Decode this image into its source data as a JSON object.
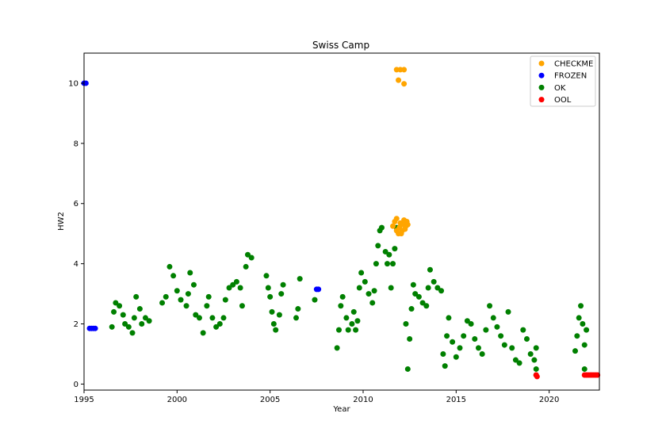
{
  "chart_data": {
    "type": "scatter",
    "title": "Swiss Camp",
    "xlabel": "Year",
    "ylabel": "HW2",
    "xlim": [
      1995.0,
      2022.7
    ],
    "ylim": [
      -0.2,
      11.0
    ],
    "x_ticks": [
      1995,
      2000,
      2005,
      2010,
      2015,
      2020
    ],
    "y_ticks": [
      0,
      2,
      4,
      6,
      8,
      10
    ],
    "grid": false,
    "legend_position": "top-right",
    "series": [
      {
        "name": "CHECKME",
        "color": "#ffa500",
        "points": [
          [
            2011.8,
            10.45
          ],
          [
            2012.0,
            10.45
          ],
          [
            2012.2,
            10.45
          ],
          [
            2011.9,
            10.1
          ],
          [
            2012.2,
            9.98
          ],
          [
            2011.6,
            5.25
          ],
          [
            2011.7,
            5.4
          ],
          [
            2011.8,
            5.5
          ],
          [
            2011.8,
            5.1
          ],
          [
            2011.9,
            5.0
          ],
          [
            2011.95,
            5.2
          ],
          [
            2012.0,
            5.35
          ],
          [
            2012.05,
            5.0
          ],
          [
            2012.1,
            5.1
          ],
          [
            2012.15,
            5.3
          ],
          [
            2012.2,
            5.45
          ],
          [
            2012.25,
            5.15
          ],
          [
            2012.3,
            5.25
          ],
          [
            2012.35,
            5.4
          ],
          [
            2012.4,
            5.3
          ]
        ]
      },
      {
        "name": "FROZEN",
        "color": "#0000ff",
        "points": [
          [
            1995.0,
            10.0
          ],
          [
            1995.1,
            10.0
          ],
          [
            1995.3,
            1.85
          ],
          [
            1995.4,
            1.85
          ],
          [
            1995.5,
            1.85
          ],
          [
            1995.6,
            1.85
          ],
          [
            2007.5,
            3.15
          ],
          [
            2007.6,
            3.15
          ]
        ]
      },
      {
        "name": "OK",
        "color": "#008000",
        "points": [
          [
            1996.5,
            1.9
          ],
          [
            1996.6,
            2.4
          ],
          [
            1996.7,
            2.7
          ],
          [
            1996.9,
            2.6
          ],
          [
            1997.1,
            2.3
          ],
          [
            1997.2,
            2.0
          ],
          [
            1997.4,
            1.9
          ],
          [
            1997.6,
            1.7
          ],
          [
            1997.7,
            2.2
          ],
          [
            1997.8,
            2.9
          ],
          [
            1998.0,
            2.5
          ],
          [
            1998.1,
            2.0
          ],
          [
            1998.3,
            2.2
          ],
          [
            1998.5,
            2.1
          ],
          [
            1999.2,
            2.7
          ],
          [
            1999.4,
            2.9
          ],
          [
            1999.6,
            3.9
          ],
          [
            1999.8,
            3.6
          ],
          [
            2000.0,
            3.1
          ],
          [
            2000.2,
            2.8
          ],
          [
            2000.5,
            2.6
          ],
          [
            2000.6,
            3.0
          ],
          [
            2000.7,
            3.7
          ],
          [
            2000.9,
            3.3
          ],
          [
            2001.0,
            2.3
          ],
          [
            2001.2,
            2.2
          ],
          [
            2001.4,
            1.7
          ],
          [
            2001.6,
            2.6
          ],
          [
            2001.7,
            2.9
          ],
          [
            2001.9,
            2.2
          ],
          [
            2002.1,
            1.9
          ],
          [
            2002.3,
            2.0
          ],
          [
            2002.5,
            2.2
          ],
          [
            2002.6,
            2.8
          ],
          [
            2002.8,
            3.2
          ],
          [
            2003.0,
            3.3
          ],
          [
            2003.2,
            3.4
          ],
          [
            2003.4,
            3.2
          ],
          [
            2003.5,
            2.6
          ],
          [
            2003.7,
            3.9
          ],
          [
            2003.8,
            4.3
          ],
          [
            2004.0,
            4.2
          ],
          [
            2004.8,
            3.6
          ],
          [
            2004.9,
            3.2
          ],
          [
            2005.0,
            2.9
          ],
          [
            2005.1,
            2.4
          ],
          [
            2005.2,
            2.0
          ],
          [
            2005.3,
            1.8
          ],
          [
            2005.5,
            2.3
          ],
          [
            2005.6,
            3.0
          ],
          [
            2005.7,
            3.3
          ],
          [
            2006.4,
            2.2
          ],
          [
            2006.5,
            2.5
          ],
          [
            2006.6,
            3.5
          ],
          [
            2007.4,
            2.8
          ],
          [
            2008.6,
            1.2
          ],
          [
            2008.7,
            1.8
          ],
          [
            2008.8,
            2.6
          ],
          [
            2008.9,
            2.9
          ],
          [
            2009.1,
            2.2
          ],
          [
            2009.2,
            1.8
          ],
          [
            2009.4,
            2.0
          ],
          [
            2009.5,
            2.4
          ],
          [
            2009.6,
            1.8
          ],
          [
            2009.7,
            2.1
          ],
          [
            2009.8,
            3.2
          ],
          [
            2009.9,
            3.7
          ],
          [
            2010.1,
            3.4
          ],
          [
            2010.3,
            3.0
          ],
          [
            2010.5,
            2.7
          ],
          [
            2010.6,
            3.1
          ],
          [
            2010.7,
            4.0
          ],
          [
            2010.8,
            4.6
          ],
          [
            2010.9,
            5.1
          ],
          [
            2011.0,
            5.2
          ],
          [
            2011.2,
            4.4
          ],
          [
            2011.3,
            4.0
          ],
          [
            2011.4,
            4.3
          ],
          [
            2011.5,
            3.2
          ],
          [
            2011.6,
            4.0
          ],
          [
            2011.7,
            4.5
          ],
          [
            2011.8,
            5.2
          ],
          [
            2012.3,
            2.0
          ],
          [
            2012.4,
            0.5
          ],
          [
            2012.5,
            1.5
          ],
          [
            2012.6,
            2.5
          ],
          [
            2012.7,
            3.3
          ],
          [
            2012.8,
            3.0
          ],
          [
            2013.0,
            2.9
          ],
          [
            2013.2,
            2.7
          ],
          [
            2013.4,
            2.6
          ],
          [
            2013.5,
            3.2
          ],
          [
            2013.6,
            3.8
          ],
          [
            2013.8,
            3.4
          ],
          [
            2014.0,
            3.2
          ],
          [
            2014.2,
            3.1
          ],
          [
            2014.3,
            1.0
          ],
          [
            2014.4,
            0.6
          ],
          [
            2014.5,
            1.6
          ],
          [
            2014.6,
            2.2
          ],
          [
            2014.8,
            1.4
          ],
          [
            2015.0,
            0.9
          ],
          [
            2015.2,
            1.2
          ],
          [
            2015.4,
            1.6
          ],
          [
            2015.6,
            2.1
          ],
          [
            2015.8,
            2.0
          ],
          [
            2016.0,
            1.5
          ],
          [
            2016.2,
            1.2
          ],
          [
            2016.4,
            1.0
          ],
          [
            2016.6,
            1.8
          ],
          [
            2016.8,
            2.6
          ],
          [
            2017.0,
            2.2
          ],
          [
            2017.2,
            1.9
          ],
          [
            2017.4,
            1.6
          ],
          [
            2017.6,
            1.3
          ],
          [
            2017.8,
            2.4
          ],
          [
            2018.0,
            1.2
          ],
          [
            2018.2,
            0.8
          ],
          [
            2018.4,
            0.7
          ],
          [
            2018.6,
            1.8
          ],
          [
            2018.8,
            1.5
          ],
          [
            2019.0,
            1.0
          ],
          [
            2019.2,
            0.8
          ],
          [
            2019.3,
            1.2
          ],
          [
            2019.3,
            0.5
          ],
          [
            2019.3,
            0.3
          ],
          [
            2021.4,
            1.1
          ],
          [
            2021.5,
            1.6
          ],
          [
            2021.6,
            2.2
          ],
          [
            2021.7,
            2.6
          ],
          [
            2021.8,
            2.0
          ],
          [
            2021.9,
            1.3
          ],
          [
            2022.0,
            1.8
          ],
          [
            2021.9,
            0.5
          ]
        ]
      },
      {
        "name": "OOL",
        "color": "#ff0000",
        "points": [
          [
            2019.3,
            0.3
          ],
          [
            2019.35,
            0.25
          ],
          [
            2021.9,
            0.3
          ],
          [
            2022.0,
            0.3
          ],
          [
            2022.1,
            0.3
          ],
          [
            2022.2,
            0.3
          ],
          [
            2022.3,
            0.3
          ],
          [
            2022.4,
            0.3
          ],
          [
            2022.5,
            0.3
          ],
          [
            2022.6,
            0.3
          ]
        ]
      }
    ]
  }
}
